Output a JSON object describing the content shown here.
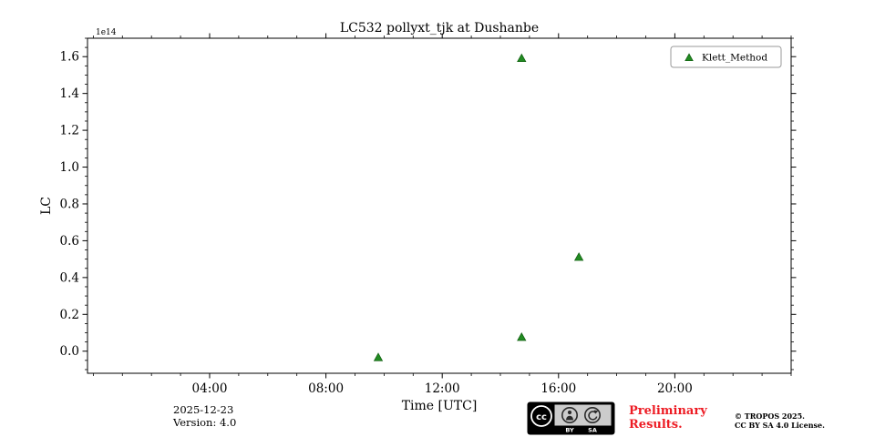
{
  "chart_data": {
    "type": "scatter",
    "title": "LC532 pollyxt_tjk at Dushanbe",
    "xlabel": "Time [UTC]",
    "ylabel": "LC",
    "y_offset_label": "1e14",
    "xlim_hours": [
      -0.2,
      24.0
    ],
    "ylim": [
      -0.12,
      1.7
    ],
    "x_ticks": [
      {
        "hour": 4,
        "label": "04:00"
      },
      {
        "hour": 8,
        "label": "08:00"
      },
      {
        "hour": 12,
        "label": "12:00"
      },
      {
        "hour": 16,
        "label": "16:00"
      },
      {
        "hour": 20,
        "label": "20:00"
      }
    ],
    "x_minor_step_hours": 1,
    "y_ticks": [
      {
        "value": 0.0,
        "label": "0.0"
      },
      {
        "value": 0.2,
        "label": "0.2"
      },
      {
        "value": 0.4,
        "label": "0.4"
      },
      {
        "value": 0.6,
        "label": "0.6"
      },
      {
        "value": 0.8,
        "label": "0.8"
      },
      {
        "value": 1.0,
        "label": "1.0"
      },
      {
        "value": 1.2,
        "label": "1.2"
      },
      {
        "value": 1.4,
        "label": "1.4"
      },
      {
        "value": 1.6,
        "label": "1.6"
      }
    ],
    "y_minor_step": 0.05,
    "grid": false,
    "legend": {
      "position": "top-right",
      "entries": [
        "Klett_Method"
      ]
    },
    "series": [
      {
        "name": "Klett_Method",
        "marker": "triangle-up",
        "color": "#228B22",
        "edge_color": "#0e5c0e",
        "points": [
          {
            "hour": 9.8,
            "value_1e14": -0.035
          },
          {
            "hour": 14.73,
            "value_1e14": 1.59
          },
          {
            "hour": 14.73,
            "value_1e14": 0.075
          },
          {
            "hour": 16.7,
            "value_1e14": 0.51
          }
        ]
      }
    ]
  },
  "footer": {
    "date": "2025-12-23",
    "version": "Version: 4.0",
    "preliminary_line1": "Preliminary",
    "preliminary_line2": "Results.",
    "preliminary_color": "#ed1c24",
    "copyright_line1": "© TROPOS 2025.",
    "copyright_line2": "CC BY SA 4.0 License.",
    "license_badge": {
      "cc_label": "cc",
      "by_label": "BY",
      "sa_label": "SA"
    }
  }
}
